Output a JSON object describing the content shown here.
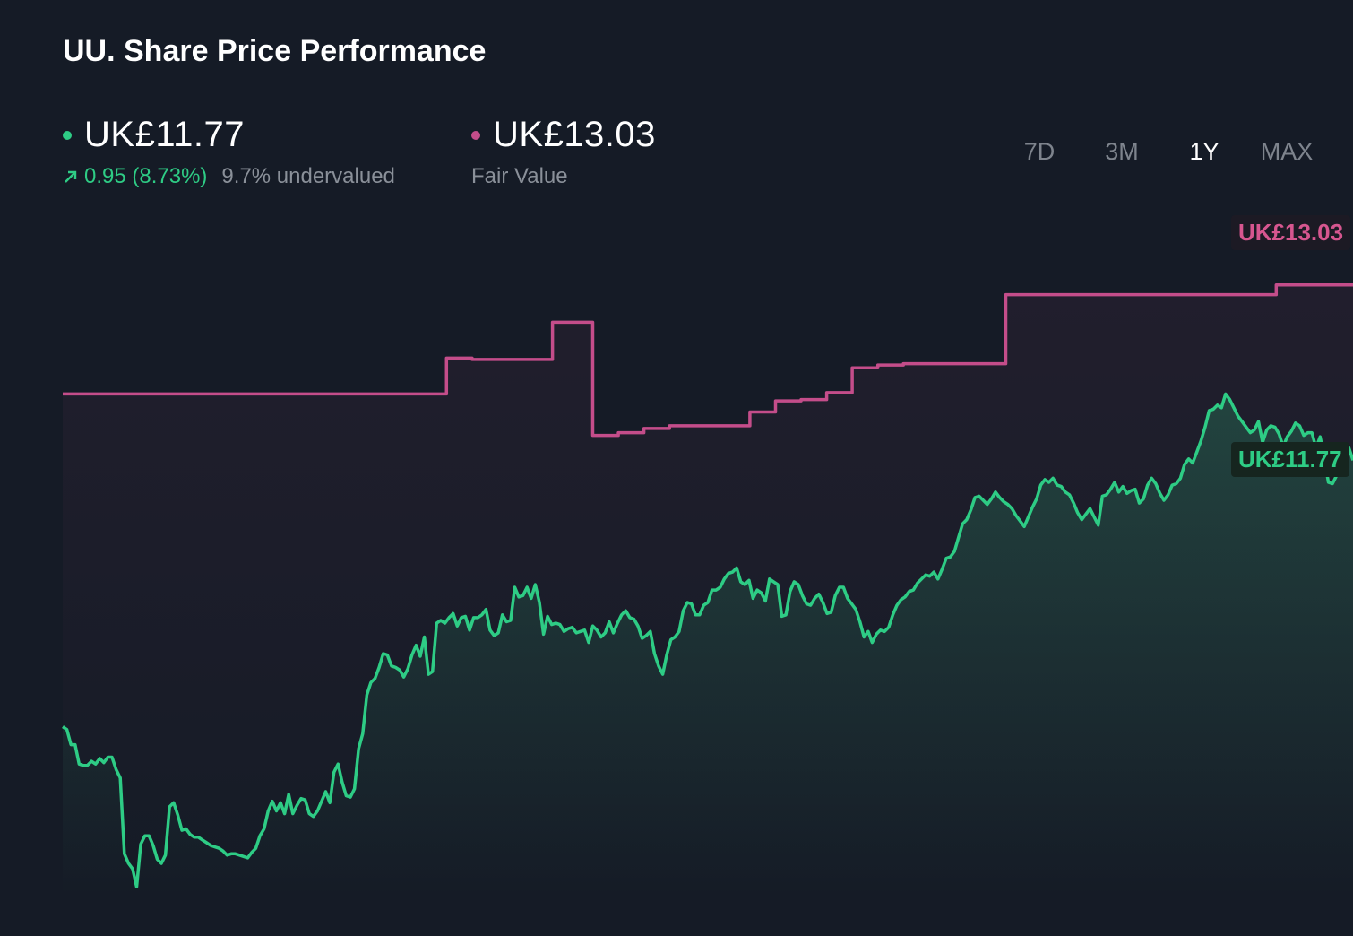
{
  "title": "UU. Share Price Performance",
  "current": {
    "price": "UK£11.77",
    "change": "0.95 (8.73%)",
    "valuation": "9.7% undervalued",
    "color": "#2ecc85"
  },
  "fair": {
    "price": "UK£13.03",
    "label": "Fair Value",
    "color": "#c44d8a"
  },
  "ranges": [
    {
      "label": "7D",
      "active": false
    },
    {
      "label": "3M",
      "active": false
    },
    {
      "label": "1Y",
      "active": true
    },
    {
      "label": "MAX",
      "active": false
    }
  ],
  "tags": {
    "fair": "UK£13.03",
    "current": "UK£11.77"
  },
  "chart_data": {
    "type": "line",
    "ylim": [
      8.6,
      13.6
    ],
    "series": [
      {
        "role": "share-price",
        "color": "#2ecc85",
        "values": [
          9.83,
          9.81,
          9.7,
          9.7,
          9.56,
          9.55,
          9.55,
          9.58,
          9.56,
          9.6,
          9.57,
          9.61,
          9.61,
          9.52,
          9.46,
          8.91,
          8.84,
          8.8,
          8.67,
          8.98,
          9.04,
          9.04,
          8.97,
          8.87,
          8.84,
          8.9,
          9.25,
          9.28,
          9.19,
          9.08,
          9.09,
          9.05,
          9.03,
          9.03,
          9.01,
          8.99,
          8.97,
          8.96,
          8.95,
          8.93,
          8.9,
          8.91,
          8.91,
          8.9,
          8.89,
          8.88,
          8.92,
          8.95,
          9.04,
          9.09,
          9.22,
          9.29,
          9.22,
          9.28,
          9.2,
          9.34,
          9.2,
          9.26,
          9.31,
          9.3,
          9.2,
          9.18,
          9.22,
          9.29,
          9.36,
          9.28,
          9.5,
          9.56,
          9.43,
          9.33,
          9.32,
          9.38,
          9.67,
          9.78,
          10.06,
          10.15,
          10.18,
          10.26,
          10.36,
          10.35,
          10.27,
          10.26,
          10.24,
          10.19,
          10.25,
          10.35,
          10.42,
          10.34,
          10.48,
          10.21,
          10.23,
          10.58,
          10.6,
          10.58,
          10.62,
          10.65,
          10.56,
          10.62,
          10.63,
          10.53,
          10.62,
          10.62,
          10.64,
          10.68,
          10.53,
          10.49,
          10.51,
          10.64,
          10.59,
          10.6,
          10.84,
          10.77,
          10.78,
          10.84,
          10.76,
          10.86,
          10.73,
          10.5,
          10.63,
          10.57,
          10.58,
          10.57,
          10.52,
          10.54,
          10.55,
          10.51,
          10.52,
          10.53,
          10.44,
          10.56,
          10.53,
          10.48,
          10.51,
          10.59,
          10.51,
          10.58,
          10.64,
          10.67,
          10.62,
          10.61,
          10.56,
          10.47,
          10.49,
          10.52,
          10.36,
          10.27,
          10.21,
          10.35,
          10.46,
          10.48,
          10.52,
          10.67,
          10.73,
          10.72,
          10.64,
          10.64,
          10.71,
          10.73,
          10.82,
          10.82,
          10.84,
          10.9,
          10.94,
          10.95,
          10.98,
          10.88,
          10.86,
          10.89,
          10.76,
          10.82,
          10.8,
          10.74,
          10.9,
          10.88,
          10.86,
          10.63,
          10.64,
          10.81,
          10.88,
          10.86,
          10.78,
          10.72,
          10.71,
          10.76,
          10.79,
          10.73,
          10.65,
          10.66,
          10.78,
          10.84,
          10.84,
          10.76,
          10.72,
          10.68,
          10.59,
          10.48,
          10.52,
          10.44,
          10.5,
          10.53,
          10.52,
          10.55,
          10.64,
          10.71,
          10.75,
          10.77,
          10.81,
          10.82,
          10.87,
          10.9,
          10.93,
          10.92,
          10.95,
          10.9,
          10.97,
          11.05,
          11.06,
          11.1,
          11.2,
          11.3,
          11.33,
          11.4,
          11.49,
          11.5,
          11.47,
          11.44,
          11.48,
          11.53,
          11.49,
          11.46,
          11.44,
          11.41,
          11.36,
          11.32,
          11.28,
          11.35,
          11.42,
          11.48,
          11.58,
          11.62,
          11.6,
          11.63,
          11.58,
          11.57,
          11.53,
          11.51,
          11.45,
          11.38,
          11.33,
          11.37,
          11.41,
          11.35,
          11.29,
          11.5,
          11.51,
          11.55,
          11.6,
          11.53,
          11.57,
          11.52,
          11.54,
          11.55,
          11.45,
          11.48,
          11.58,
          11.63,
          11.59,
          11.52,
          11.47,
          11.51,
          11.58,
          11.59,
          11.63,
          11.73,
          11.77,
          11.74,
          11.82,
          11.9,
          12.0,
          12.12,
          12.13,
          12.16,
          12.14,
          12.24,
          12.2,
          12.14,
          12.08,
          12.04,
          12.0,
          11.96,
          11.98,
          12.04,
          11.89,
          11.98,
          12.01,
          12.0,
          11.95,
          11.86,
          11.93,
          11.97,
          12.03,
          12.01,
          11.94,
          11.96,
          11.96,
          11.85,
          11.93,
          11.78,
          11.6,
          11.59,
          11.65,
          11.71,
          11.71,
          11.85,
          11.76
        ]
      },
      {
        "role": "fair-value",
        "color": "#c44d8a",
        "values": [
          12.24,
          12.24,
          12.24,
          12.24,
          12.24,
          12.24,
          12.24,
          12.24,
          12.24,
          12.24,
          12.24,
          12.24,
          12.24,
          12.24,
          12.24,
          12.24,
          12.24,
          12.24,
          12.24,
          12.24,
          12.24,
          12.24,
          12.24,
          12.24,
          12.24,
          12.24,
          12.24,
          12.24,
          12.24,
          12.24,
          12.24,
          12.24,
          12.24,
          12.24,
          12.24,
          12.24,
          12.24,
          12.24,
          12.24,
          12.24,
          12.24,
          12.24,
          12.24,
          12.24,
          12.24,
          12.24,
          12.24,
          12.24,
          12.24,
          12.24,
          12.24,
          12.24,
          12.24,
          12.24,
          12.24,
          12.24,
          12.24,
          12.24,
          12.24,
          12.24,
          12.24,
          12.24,
          12.24,
          12.24,
          12.24,
          12.24,
          12.24,
          12.24,
          12.24,
          12.24,
          12.24,
          12.24,
          12.24,
          12.24,
          12.24,
          12.24,
          12.24,
          12.24,
          12.24,
          12.24,
          12.24,
          12.24,
          12.24,
          12.24,
          12.24,
          12.24,
          12.24,
          12.24,
          12.24,
          12.24,
          12.24,
          12.24,
          12.24,
          12.24,
          12.24,
          12.24,
          12.24,
          12.24,
          12.24,
          12.24,
          12.24,
          12.24,
          12.24,
          12.24,
          12.24,
          12.5,
          12.5,
          12.5,
          12.5,
          12.5,
          12.5,
          12.5,
          12.49,
          12.49,
          12.49,
          12.49,
          12.49,
          12.49,
          12.49,
          12.49,
          12.49,
          12.49,
          12.49,
          12.49,
          12.49,
          12.49,
          12.49,
          12.49,
          12.49,
          12.49,
          12.49,
          12.49,
          12.49,
          12.49,
          12.76,
          12.76,
          12.76,
          12.76,
          12.76,
          12.76,
          12.76,
          12.76,
          12.76,
          12.76,
          12.76,
          11.94,
          11.94,
          11.94,
          11.94,
          11.94,
          11.94,
          11.94,
          11.96,
          11.96,
          11.96,
          11.96,
          11.96,
          11.96,
          11.96,
          11.99,
          11.99,
          11.99,
          11.99,
          11.99,
          11.99,
          11.99,
          12.01,
          12.01,
          12.01,
          12.01,
          12.01,
          12.01,
          12.01,
          12.01,
          12.01,
          12.01,
          12.01,
          12.01,
          12.01,
          12.01,
          12.01,
          12.01,
          12.01,
          12.01,
          12.01,
          12.01,
          12.01,
          12.01,
          12.11,
          12.11,
          12.11,
          12.11,
          12.11,
          12.11,
          12.11,
          12.19,
          12.19,
          12.19,
          12.19,
          12.19,
          12.19,
          12.19,
          12.2,
          12.2,
          12.2,
          12.2,
          12.2,
          12.2,
          12.2,
          12.25,
          12.25,
          12.25,
          12.25,
          12.25,
          12.25,
          12.25,
          12.43,
          12.43,
          12.43,
          12.43,
          12.43,
          12.43,
          12.43,
          12.45,
          12.45,
          12.45,
          12.45,
          12.45,
          12.45,
          12.45,
          12.46,
          12.46,
          12.46,
          12.46,
          12.46,
          12.46,
          12.46,
          12.46,
          12.46,
          12.46,
          12.46,
          12.46,
          12.46,
          12.46,
          12.46,
          12.46,
          12.46,
          12.46,
          12.46,
          12.46,
          12.46,
          12.46,
          12.46,
          12.46,
          12.46,
          12.46,
          12.46,
          12.46,
          12.96,
          12.96,
          12.96,
          12.96,
          12.96,
          12.96,
          12.96,
          12.96,
          12.96,
          12.96,
          12.96,
          12.96,
          12.96,
          12.96,
          12.96,
          12.96,
          12.96,
          12.96,
          12.96,
          12.96,
          12.96,
          12.96,
          12.96,
          12.96,
          12.96,
          12.96,
          12.96,
          12.96,
          12.96,
          12.96,
          12.96,
          12.96,
          12.96,
          12.96,
          12.96,
          12.96,
          12.96,
          12.96,
          12.96,
          12.96,
          12.96,
          12.96,
          12.96,
          12.96,
          12.96,
          12.96,
          12.96,
          12.96,
          12.96,
          12.96,
          12.96,
          12.96,
          12.96,
          12.96,
          12.96,
          12.96,
          12.96,
          12.96,
          12.96,
          12.96,
          12.96,
          12.96,
          12.96,
          12.96,
          12.96,
          12.96,
          12.96,
          12.96,
          12.96,
          12.96,
          12.96,
          12.96,
          12.96,
          12.96,
          13.03,
          13.03,
          13.03,
          13.03,
          13.03,
          13.03,
          13.03,
          13.03,
          13.03,
          13.03,
          13.03,
          13.03,
          13.03,
          13.03,
          13.03,
          13.03,
          13.03,
          13.03,
          13.03,
          13.03,
          13.03,
          13.03
        ]
      }
    ],
    "grid": false,
    "legend": "none"
  }
}
